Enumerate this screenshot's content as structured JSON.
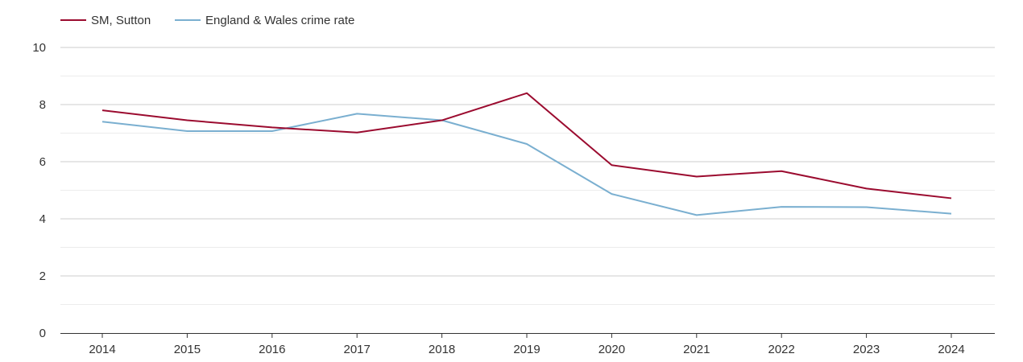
{
  "chart_data": {
    "type": "line",
    "title": "",
    "xlabel": "",
    "ylabel": "",
    "x": [
      "2014",
      "2015",
      "2016",
      "2017",
      "2018",
      "2019",
      "2020",
      "2021",
      "2022",
      "2023",
      "2024"
    ],
    "ylim": [
      0,
      10
    ],
    "yticks": [
      "0",
      "2",
      "4",
      "6",
      "8",
      "10"
    ],
    "grid": true,
    "legend_position": "top-left",
    "series": [
      {
        "name": "SM, Sutton",
        "color": "#9b0b2f",
        "values": [
          7.8,
          7.45,
          7.2,
          7.02,
          7.45,
          8.4,
          5.88,
          5.48,
          5.67,
          5.06,
          4.72
        ]
      },
      {
        "name": "England & Wales crime rate",
        "color": "#7aafd0",
        "values": [
          7.4,
          7.07,
          7.07,
          7.68,
          7.45,
          6.62,
          4.87,
          4.13,
          4.42,
          4.41,
          4.18
        ]
      }
    ]
  }
}
